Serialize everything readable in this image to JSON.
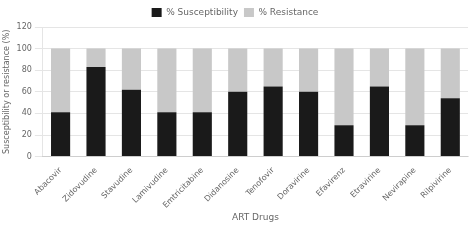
{
  "chart_data": {
    "type": "bar",
    "stacked": true,
    "xlabel": "ART Drugs",
    "ylabel": "Susceptibility or resistance (%)",
    "categories": [
      "Abacovir",
      "Zidovudine",
      "Stavudine",
      "Lamivudine",
      "Emtricitabine",
      "Didanosine",
      "Tenofovir",
      "Doravirine",
      "Efavirenz",
      "Etravirine",
      "Nevirapine",
      "Rilpivirine"
    ],
    "series": [
      {
        "name": "% Susceptibility",
        "color": "#1a1a1a",
        "values": [
          41,
          83,
          62,
          41,
          41,
          60,
          65,
          60,
          29,
          65,
          29,
          54
        ]
      },
      {
        "name": "% Resistance",
        "color": "#c8c8c8",
        "values": [
          59,
          17,
          38,
          59,
          59,
          40,
          35,
          40,
          71,
          35,
          71,
          46
        ]
      }
    ],
    "ylim": [
      0,
      120
    ],
    "yticks": [
      0,
      20,
      40,
      60,
      80,
      100,
      120
    ],
    "grid": true,
    "legend": "top"
  }
}
